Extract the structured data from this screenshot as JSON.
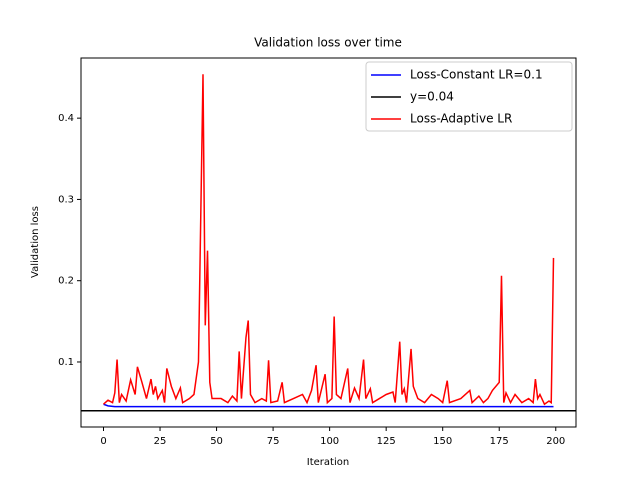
{
  "chart_data": {
    "type": "line",
    "title": "Validation loss over time",
    "x_label": "Iteration",
    "y_label": "Validation loss",
    "xlim": [
      -9.95,
      208.95
    ],
    "ylim": [
      0.02,
      0.474
    ],
    "xticks": [
      0,
      25,
      50,
      75,
      100,
      125,
      150,
      175,
      200
    ],
    "yticks": [
      0.1,
      0.2,
      0.3,
      0.4
    ],
    "legend": "upper right",
    "series": [
      {
        "name": "Loss-Constant LR=0.1",
        "color": "#0000ff",
        "x": [
          0,
          2,
          5,
          50,
          100,
          150,
          199
        ],
        "values": [
          0.048,
          0.046,
          0.045,
          0.045,
          0.045,
          0.045,
          0.045
        ]
      },
      {
        "name": "Loss-Adaptive LR",
        "color": "#ff0000",
        "x": [
          0,
          2,
          4,
          5,
          6,
          7,
          8,
          10,
          12,
          14,
          15,
          17,
          19,
          21,
          22,
          23,
          24,
          26,
          27,
          28,
          30,
          32,
          34,
          35,
          38,
          40,
          42,
          44,
          45,
          46,
          47,
          48,
          52,
          55,
          57,
          59,
          60,
          61,
          63,
          64,
          65,
          67,
          70,
          72,
          73,
          74,
          77,
          79,
          80,
          84,
          88,
          90,
          92,
          94,
          95,
          98,
          99,
          101,
          102,
          103,
          105,
          108,
          109,
          111,
          113,
          115,
          116,
          118,
          119,
          122,
          125,
          128,
          129,
          131,
          132,
          133,
          134,
          136,
          137,
          139,
          142,
          145,
          148,
          150,
          152,
          153,
          158,
          162,
          163,
          166,
          168,
          170,
          172,
          175,
          176,
          177,
          178,
          180,
          182,
          185,
          188,
          190,
          191,
          192,
          193,
          195,
          197,
          198,
          199
        ],
        "values": [
          0.048,
          0.053,
          0.05,
          0.062,
          0.103,
          0.05,
          0.06,
          0.052,
          0.078,
          0.06,
          0.094,
          0.075,
          0.055,
          0.079,
          0.06,
          0.07,
          0.055,
          0.065,
          0.05,
          0.092,
          0.07,
          0.055,
          0.068,
          0.05,
          0.055,
          0.06,
          0.1,
          0.454,
          0.145,
          0.237,
          0.075,
          0.055,
          0.055,
          0.05,
          0.058,
          0.052,
          0.113,
          0.055,
          0.13,
          0.151,
          0.06,
          0.05,
          0.055,
          0.052,
          0.102,
          0.05,
          0.052,
          0.075,
          0.05,
          0.055,
          0.06,
          0.05,
          0.065,
          0.096,
          0.05,
          0.085,
          0.05,
          0.055,
          0.156,
          0.06,
          0.055,
          0.092,
          0.05,
          0.068,
          0.055,
          0.103,
          0.055,
          0.067,
          0.05,
          0.055,
          0.06,
          0.063,
          0.05,
          0.125,
          0.06,
          0.067,
          0.05,
          0.116,
          0.07,
          0.055,
          0.05,
          0.06,
          0.055,
          0.05,
          0.077,
          0.05,
          0.055,
          0.065,
          0.05,
          0.058,
          0.05,
          0.055,
          0.065,
          0.075,
          0.206,
          0.05,
          0.062,
          0.05,
          0.06,
          0.05,
          0.055,
          0.05,
          0.079,
          0.055,
          0.06,
          0.048,
          0.052,
          0.05,
          0.228
        ]
      }
    ],
    "hline": {
      "name": "y=0.04",
      "value": 0.04,
      "color": "#000000"
    }
  }
}
